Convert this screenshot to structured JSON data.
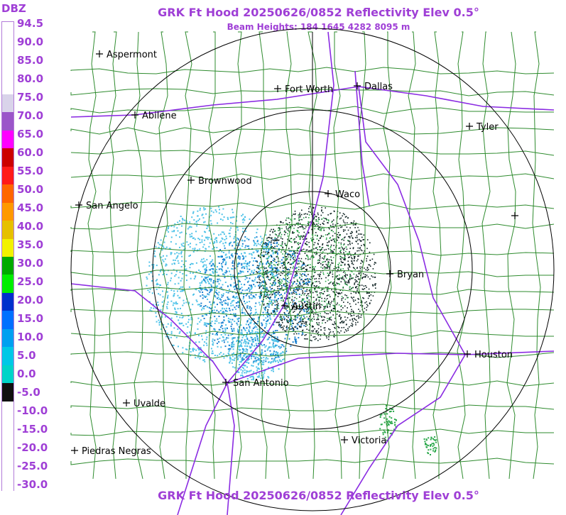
{
  "header": {
    "title": "GRK Ft Hood 20250626/0852 Reflectivity Elev 0.5°",
    "subtitle": "Beam Heights: 184 1645 4282 8095 m"
  },
  "footer": {
    "title": "GRK Ft Hood 20250626/0852 Reflectivity Elev 0.5°"
  },
  "legend": {
    "title": "DBZ",
    "labels": [
      "94.5",
      "90.0",
      "85.0",
      "80.0",
      "75.0",
      "70.0",
      "65.0",
      "60.0",
      "55.0",
      "50.0",
      "45.0",
      "40.0",
      "35.0",
      "30.0",
      "25.0",
      "20.0",
      "15.0",
      "10.0",
      "5.0",
      "0.0",
      "-5.0",
      "-10.0",
      "-15.0",
      "-20.0",
      "-25.0",
      "-30.0"
    ],
    "colors": [
      "#ffffff",
      "#ffffff",
      "#ffffff",
      "#ffffff",
      "#d9d3ea",
      "#9b55c9",
      "#ff00ff",
      "#cc0000",
      "#ff1a1a",
      "#ff6600",
      "#ff9900",
      "#e6c000",
      "#f2f200",
      "#00aa00",
      "#00ee00",
      "#0030cc",
      "#0070ff",
      "#00a0f0",
      "#00c8e6",
      "#00d4c8",
      "#101010",
      "#ffffff",
      "#ffffff",
      "#ffffff",
      "#ffffff",
      "#ffffff"
    ]
  },
  "map": {
    "colors": {
      "county_lines": "#2e8b2e",
      "highways": "#8a2be2",
      "range_rings": "#000000",
      "echo_light": "#4fc3e8",
      "echo_medium": "#1a7fd0",
      "echo_dark": "#0a1f1f",
      "echo_green": "#2aa84a"
    },
    "cities": [
      {
        "name": "Aspermont"
      },
      {
        "name": "Fort Worth"
      },
      {
        "name": "Dallas"
      },
      {
        "name": "Abilene"
      },
      {
        "name": "Tyler"
      },
      {
        "name": "Brownwood"
      },
      {
        "name": "Waco"
      },
      {
        "name": "San Angelo"
      },
      {
        "name": "Bryan"
      },
      {
        "name": "Austin"
      },
      {
        "name": "Houston"
      },
      {
        "name": "San Antonio"
      },
      {
        "name": "Uvalde"
      },
      {
        "name": "Victoria"
      },
      {
        "name": "Piedras Negras"
      },
      {
        "name": ""
      }
    ]
  }
}
